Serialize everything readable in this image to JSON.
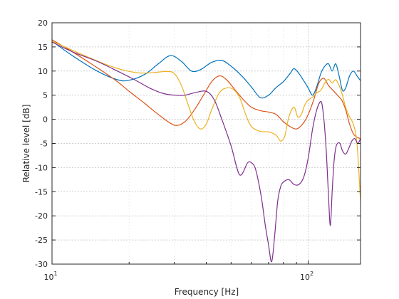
{
  "chart_data": {
    "type": "line",
    "xlabel": "Frequency [Hz]",
    "ylabel": "Relative level [dB]",
    "xscale": "log",
    "xlim": [
      10,
      160
    ],
    "ylim": [
      -30,
      20
    ],
    "grid": true,
    "x_ticks": [
      10,
      100
    ],
    "x_tick_labels": [
      {
        "base": "10",
        "exp": "1"
      },
      {
        "base": "10",
        "exp": "2"
      }
    ],
    "y_ticks": [
      -30,
      -25,
      -20,
      -15,
      -10,
      -5,
      0,
      5,
      10,
      15,
      20
    ],
    "y_tick_labels": [
      "-30",
      "-25",
      "-20",
      "-15",
      "-10",
      "-5",
      "0",
      "5",
      "10",
      "15",
      "20"
    ],
    "series": [
      {
        "color": "#0072BD",
        "x": [
          10,
          12,
          15,
          18,
          20,
          23,
          26,
          29,
          32,
          35,
          38,
          42,
          46,
          50,
          55,
          60,
          65,
          70,
          75,
          80,
          85,
          88,
          92,
          96,
          100,
          104,
          108,
          112,
          116,
          120,
          124,
          128,
          132,
          136,
          140,
          145,
          150,
          155,
          160
        ],
        "y": [
          16.2,
          13.2,
          10,
          8.2,
          8.1,
          9.3,
          11.5,
          13.2,
          12,
          10,
          10.3,
          11.8,
          12.2,
          11,
          9,
          6.7,
          4.5,
          5,
          6.6,
          7.8,
          9.5,
          10.5,
          9.5,
          8,
          6.5,
          5,
          6.8,
          9.5,
          11,
          11.5,
          10,
          11.5,
          9,
          6,
          6.5,
          9,
          10,
          9,
          8
        ]
      },
      {
        "color": "#D95319",
        "x": [
          10,
          12,
          15,
          18,
          20,
          23,
          26,
          30,
          33,
          36,
          39,
          42,
          45,
          48,
          52,
          56,
          60,
          65,
          70,
          75,
          80,
          85,
          90,
          95,
          100,
          105,
          110,
          115,
          120,
          125,
          130,
          135,
          140,
          145,
          150,
          155,
          160
        ],
        "y": [
          16.5,
          14,
          10.7,
          7.8,
          5.8,
          3.3,
          1,
          -1.2,
          -0.5,
          2,
          5,
          7.8,
          9,
          8.2,
          6,
          4,
          2.5,
          1.8,
          1.5,
          1,
          -0.5,
          -1.5,
          -2,
          -1,
          1,
          4,
          7.5,
          8.5,
          7,
          6,
          5,
          4,
          2,
          -1,
          -3,
          -3.7,
          -4
        ]
      },
      {
        "color": "#EDB120",
        "x": [
          10,
          13,
          16,
          19,
          22,
          25,
          28,
          30,
          32,
          34,
          36,
          38,
          40,
          42,
          45,
          48,
          51,
          54,
          57,
          60,
          65,
          70,
          75,
          78,
          81,
          84,
          88,
          91,
          94,
          97,
          100,
          104,
          108,
          112,
          116,
          120,
          124,
          128,
          132,
          136,
          140,
          145,
          150,
          155,
          160
        ],
        "y": [
          16.2,
          13.5,
          11.5,
          10.2,
          9.6,
          9.7,
          9.9,
          9.5,
          7,
          3,
          -0.5,
          -2,
          -1,
          2,
          5.5,
          6.5,
          6.2,
          4.5,
          1,
          -1.5,
          -2.5,
          -2.6,
          -3.3,
          -4.5,
          -3.5,
          0.5,
          2.5,
          0.5,
          1,
          3,
          4,
          4.6,
          5.5,
          6,
          7.5,
          8.3,
          7.5,
          8.2,
          7,
          5,
          2.5,
          0.5,
          -1,
          -5,
          -17
        ]
      },
      {
        "color": "#7E2F8E",
        "x": [
          10,
          12,
          15,
          18,
          21,
          24,
          27,
          30,
          33,
          36,
          40,
          43,
          46,
          50,
          54,
          58,
          60,
          62,
          64,
          66,
          68,
          70,
          72,
          74,
          76,
          78,
          80,
          84,
          88,
          92,
          96,
          100,
          104,
          108,
          112,
          114,
          116,
          118,
          120,
          122,
          124,
          126,
          128,
          130,
          133,
          136,
          140,
          144,
          148,
          152,
          156,
          160
        ],
        "y": [
          16,
          14,
          12,
          10,
          8.2,
          6.5,
          5.4,
          5,
          5,
          5.5,
          5.8,
          4,
          0,
          -5.5,
          -11.5,
          -9,
          -9,
          -10,
          -13,
          -17,
          -22,
          -26,
          -29.5,
          -24,
          -17,
          -14,
          -13,
          -12.5,
          -13.5,
          -13.5,
          -12,
          -8,
          -2,
          2,
          3.7,
          2,
          -2,
          -8,
          -16,
          -22,
          -15,
          -9,
          -6,
          -5,
          -5,
          -6.5,
          -7.2,
          -6,
          -4.5,
          -4,
          -5,
          -4
        ]
      }
    ]
  }
}
